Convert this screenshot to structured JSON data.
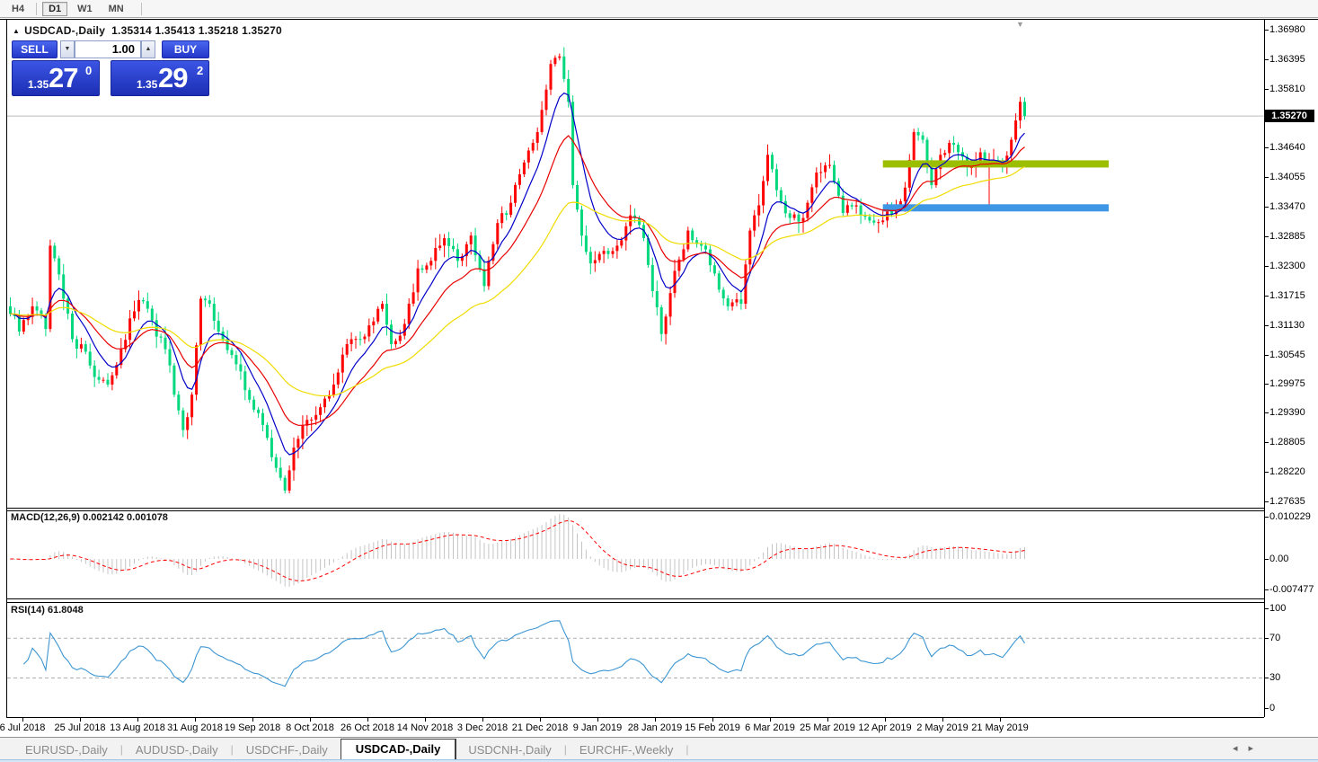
{
  "toolbar": {
    "periods": [
      {
        "label": "H4",
        "active": false
      },
      {
        "label": "D1",
        "active": true
      },
      {
        "label": "W1",
        "active": false
      },
      {
        "label": "MN",
        "active": false
      }
    ]
  },
  "header": {
    "marker": "▲",
    "symbol_period": "USDCAD-,Daily",
    "ohlc_text": "1.35314 1.35413 1.35218 1.35270"
  },
  "trade_panel": {
    "sell_label": "SELL",
    "buy_label": "BUY",
    "volume": "1.00",
    "spin_down": "▼",
    "spin_up": "▲",
    "sell_price": {
      "small": "1.35",
      "big": "27",
      "sup": "0"
    },
    "buy_price": {
      "small": "1.35",
      "big": "29",
      "sup": "2"
    }
  },
  "price_axis": {
    "ticks": [
      "1.36980",
      "1.36395",
      "1.35810",
      "1.34640",
      "1.34055",
      "1.33470",
      "1.32885",
      "1.32300",
      "1.31715",
      "1.31130",
      "1.30545",
      "1.29975",
      "1.29390",
      "1.28805",
      "1.28220",
      "1.27635"
    ],
    "current": "1.35270"
  },
  "macd_panel": {
    "label": "MACD(12,26,9)",
    "value_main": "0.002142",
    "value_signal": "0.001078",
    "axis": [
      "0.010229",
      "0.00",
      "-0.007477"
    ]
  },
  "rsi_panel": {
    "label": "RSI(14)",
    "value": "61.8048",
    "axis": [
      "100",
      "70",
      "30",
      "0"
    ]
  },
  "date_axis": {
    "labels": [
      "6 Jul 2018",
      "25 Jul 2018",
      "13 Aug 2018",
      "31 Aug 2018",
      "19 Sep 2018",
      "8 Oct 2018",
      "26 Oct 2018",
      "14 Nov 2018",
      "3 Dec 2018",
      "21 Dec 2018",
      "9 Jan 2019",
      "28 Jan 2019",
      "15 Feb 2019",
      "6 Mar 2019",
      "25 Mar 2019",
      "12 Apr 2019",
      "2 May 2019",
      "21 May 2019"
    ]
  },
  "tab_bar": {
    "tabs": [
      {
        "label": "EURUSD-,Daily",
        "active": false
      },
      {
        "label": "AUDUSD-,Daily",
        "active": false
      },
      {
        "label": "USDCHF-,Daily",
        "active": false
      },
      {
        "label": "USDCAD-,Daily",
        "active": true
      },
      {
        "label": "USDCNH-,Daily",
        "active": false
      },
      {
        "label": "EURCHF-,Weekly",
        "active": false
      }
    ],
    "scroll_left": "◂",
    "scroll_right": "▸"
  },
  "shift_marker": "▼",
  "chart_data": {
    "type": "candlestick",
    "symbol": "USDCAD",
    "timeframe": "Daily",
    "ohlc_current": {
      "open": 1.35314,
      "high": 1.35413,
      "low": 1.35218,
      "close": 1.3527
    },
    "price_range": [
      1.27635,
      1.3698
    ],
    "num_candles": 230,
    "candle_colors": {
      "bull": "#FF0000",
      "bear": "#00D87E"
    },
    "close_waypoints": [
      [
        0,
        1.3135
      ],
      [
        2,
        1.31
      ],
      [
        5,
        1.315
      ],
      [
        8,
        1.3105
      ],
      [
        9,
        1.327
      ],
      [
        10,
        1.3245
      ],
      [
        12,
        1.3165
      ],
      [
        14,
        1.3085
      ],
      [
        17,
        1.306
      ],
      [
        19,
        1.301
      ],
      [
        22,
        1.2995
      ],
      [
        25,
        1.3065
      ],
      [
        28,
        1.314
      ],
      [
        30,
        1.316
      ],
      [
        33,
        1.309
      ],
      [
        35,
        1.3065
      ],
      [
        37,
        1.2975
      ],
      [
        39,
        1.2905
      ],
      [
        41,
        1.2975
      ],
      [
        43,
        1.3165
      ],
      [
        45,
        1.3155
      ],
      [
        48,
        1.3085
      ],
      [
        51,
        1.3035
      ],
      [
        54,
        1.2965
      ],
      [
        57,
        1.2915
      ],
      [
        60,
        1.283
      ],
      [
        62,
        1.2785
      ],
      [
        64,
        1.287
      ],
      [
        67,
        1.2925
      ],
      [
        70,
        1.295
      ],
      [
        73,
        1.2995
      ],
      [
        76,
        1.3075
      ],
      [
        79,
        1.3085
      ],
      [
        82,
        1.312
      ],
      [
        84,
        1.3155
      ],
      [
        86,
        1.3075
      ],
      [
        89,
        1.3115
      ],
      [
        92,
        1.3225
      ],
      [
        95,
        1.324
      ],
      [
        98,
        1.3285
      ],
      [
        101,
        1.324
      ],
      [
        104,
        1.329
      ],
      [
        107,
        1.319
      ],
      [
        110,
        1.3315
      ],
      [
        113,
        1.3355
      ],
      [
        116,
        1.3435
      ],
      [
        119,
        1.3495
      ],
      [
        122,
        1.363
      ],
      [
        124,
        1.3645
      ],
      [
        126,
        1.3555
      ],
      [
        127,
        1.339
      ],
      [
        129,
        1.329
      ],
      [
        131,
        1.3235
      ],
      [
        134,
        1.326
      ],
      [
        137,
        1.327
      ],
      [
        140,
        1.333
      ],
      [
        143,
        1.3285
      ],
      [
        145,
        1.318
      ],
      [
        147,
        1.3095
      ],
      [
        150,
        1.322
      ],
      [
        153,
        1.33
      ],
      [
        156,
        1.327
      ],
      [
        159,
        1.3215
      ],
      [
        162,
        1.315
      ],
      [
        165,
        1.3155
      ],
      [
        167,
        1.33
      ],
      [
        169,
        1.335
      ],
      [
        171,
        1.345
      ],
      [
        173,
        1.338
      ],
      [
        176,
        1.3325
      ],
      [
        179,
        1.3325
      ],
      [
        182,
        1.3415
      ],
      [
        185,
        1.343
      ],
      [
        188,
        1.3335
      ],
      [
        191,
        1.335
      ],
      [
        194,
        1.332
      ],
      [
        197,
        1.332
      ],
      [
        200,
        1.3345
      ],
      [
        202,
        1.3385
      ],
      [
        204,
        1.3495
      ],
      [
        206,
        1.348
      ],
      [
        208,
        1.339
      ],
      [
        210,
        1.345
      ],
      [
        213,
        1.347
      ],
      [
        216,
        1.3425
      ],
      [
        219,
        1.3455
      ],
      [
        221,
        1.3435
      ],
      [
        222,
        1.344
      ],
      [
        224,
        1.3425
      ],
      [
        226,
        1.348
      ],
      [
        228,
        1.3555
      ],
      [
        229,
        1.3527
      ]
    ],
    "long_wick": {
      "index": 221,
      "low": 1.335
    },
    "moving_averages": [
      {
        "name": "fast-ma",
        "period": 8,
        "color": "#0000C8"
      },
      {
        "name": "medium-ma",
        "period": 18,
        "color": "#E80000"
      },
      {
        "name": "slow-ma",
        "period": 42,
        "color": "#EFDC00"
      }
    ],
    "levels": [
      {
        "name": "resistance",
        "price": 1.3432,
        "color": "#9CBE00",
        "thickness": 8,
        "from_index": 197,
        "to_index": 248
      },
      {
        "name": "support",
        "price": 1.3345,
        "color": "#3E96E5",
        "thickness": 8,
        "from_index": 197,
        "to_index": 248
      }
    ],
    "current_price_line": {
      "price": 1.3527,
      "color": "#BEBEBE"
    },
    "indicators": {
      "macd": {
        "fast": 12,
        "slow": 26,
        "signal": 9,
        "current_main": 0.002142,
        "current_signal": 0.001078,
        "histogram_color": "#C4C4C4",
        "signal_color": "#FF0000",
        "signal_style": "dashed",
        "axis_top": 0.010229,
        "axis_bottom": -0.007477
      },
      "rsi": {
        "period": 14,
        "current": 61.8048,
        "color": "#3C96D2",
        "levels": [
          70,
          30
        ],
        "range": [
          0,
          100
        ]
      }
    }
  }
}
